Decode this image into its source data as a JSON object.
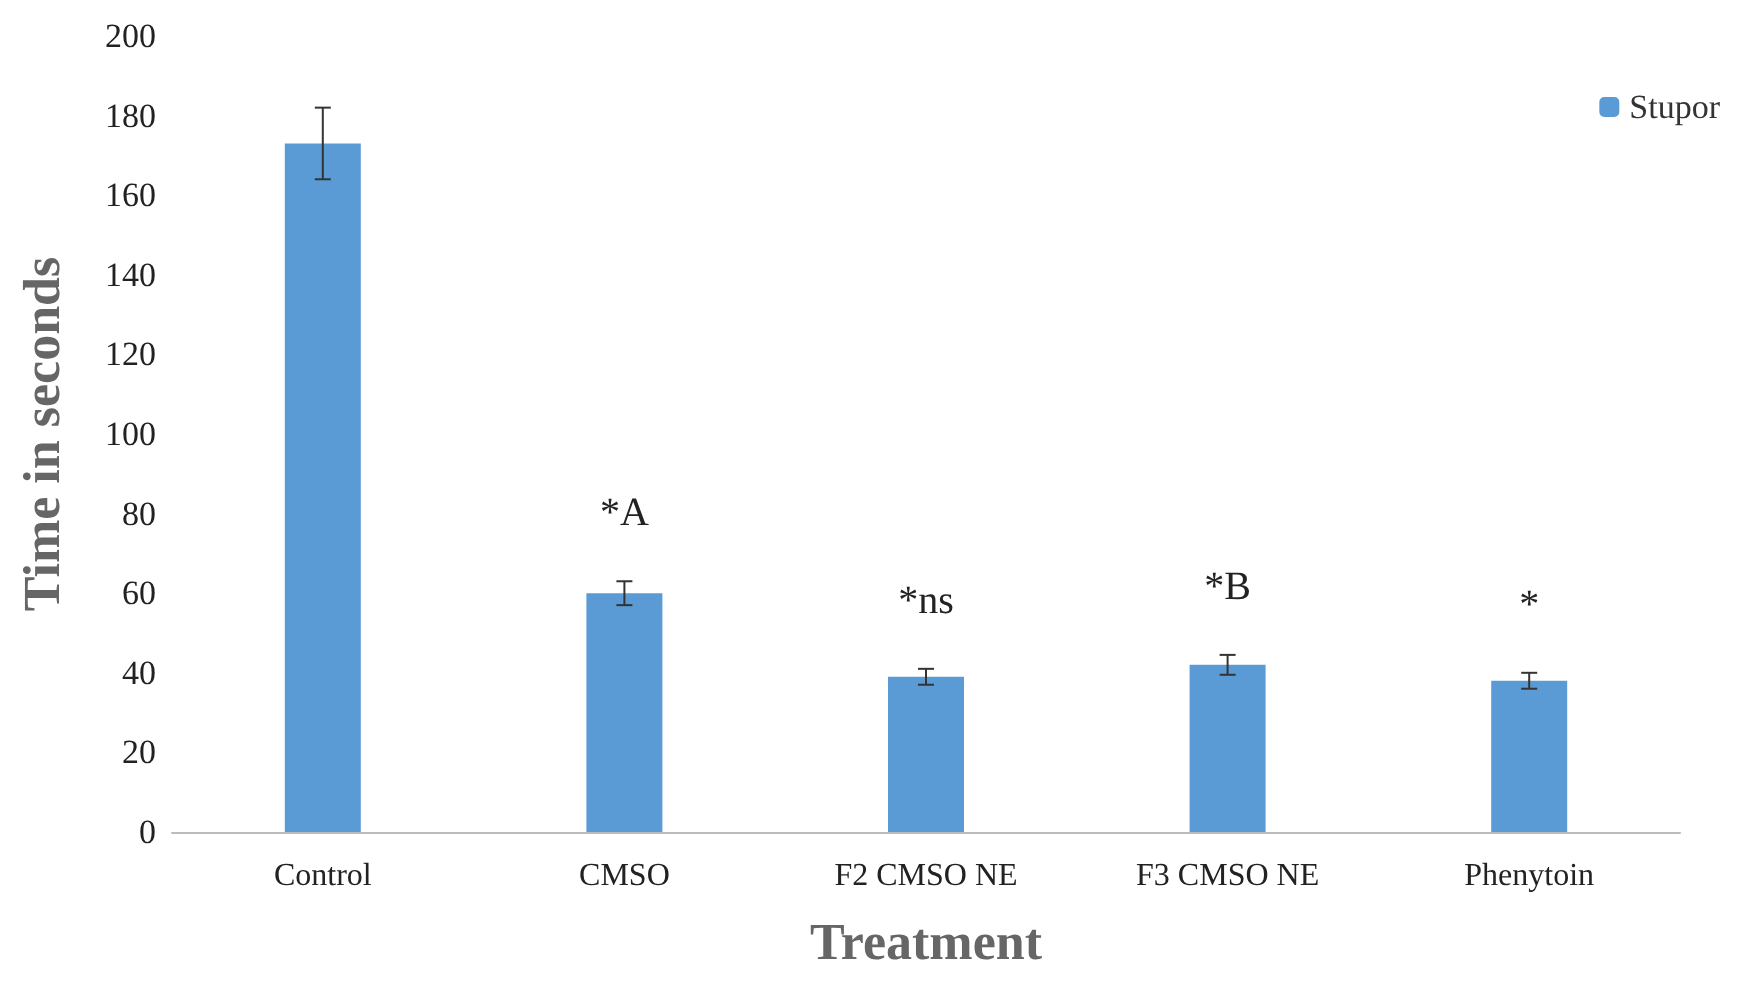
{
  "chart_data": {
    "type": "bar",
    "xlabel": "Treatment",
    "ylabel": "Time in seconds",
    "categories": [
      "Control",
      "CMSO",
      "F2 CMSO NE",
      "F3 CMSO NE",
      "Phenytoin"
    ],
    "series": [
      {
        "name": "Stupor",
        "color": "#5b9bd5",
        "values": [
          173,
          60,
          39,
          42,
          38
        ],
        "errors": [
          9,
          3,
          2,
          2.5,
          2
        ]
      }
    ],
    "ylim": [
      0,
      200
    ],
    "yticks": [
      0,
      20,
      40,
      60,
      80,
      100,
      120,
      140,
      160,
      180,
      200
    ],
    "grid": false,
    "legend": "top right",
    "annotations": [
      "*A",
      "*ns",
      "*B",
      "*"
    ]
  }
}
